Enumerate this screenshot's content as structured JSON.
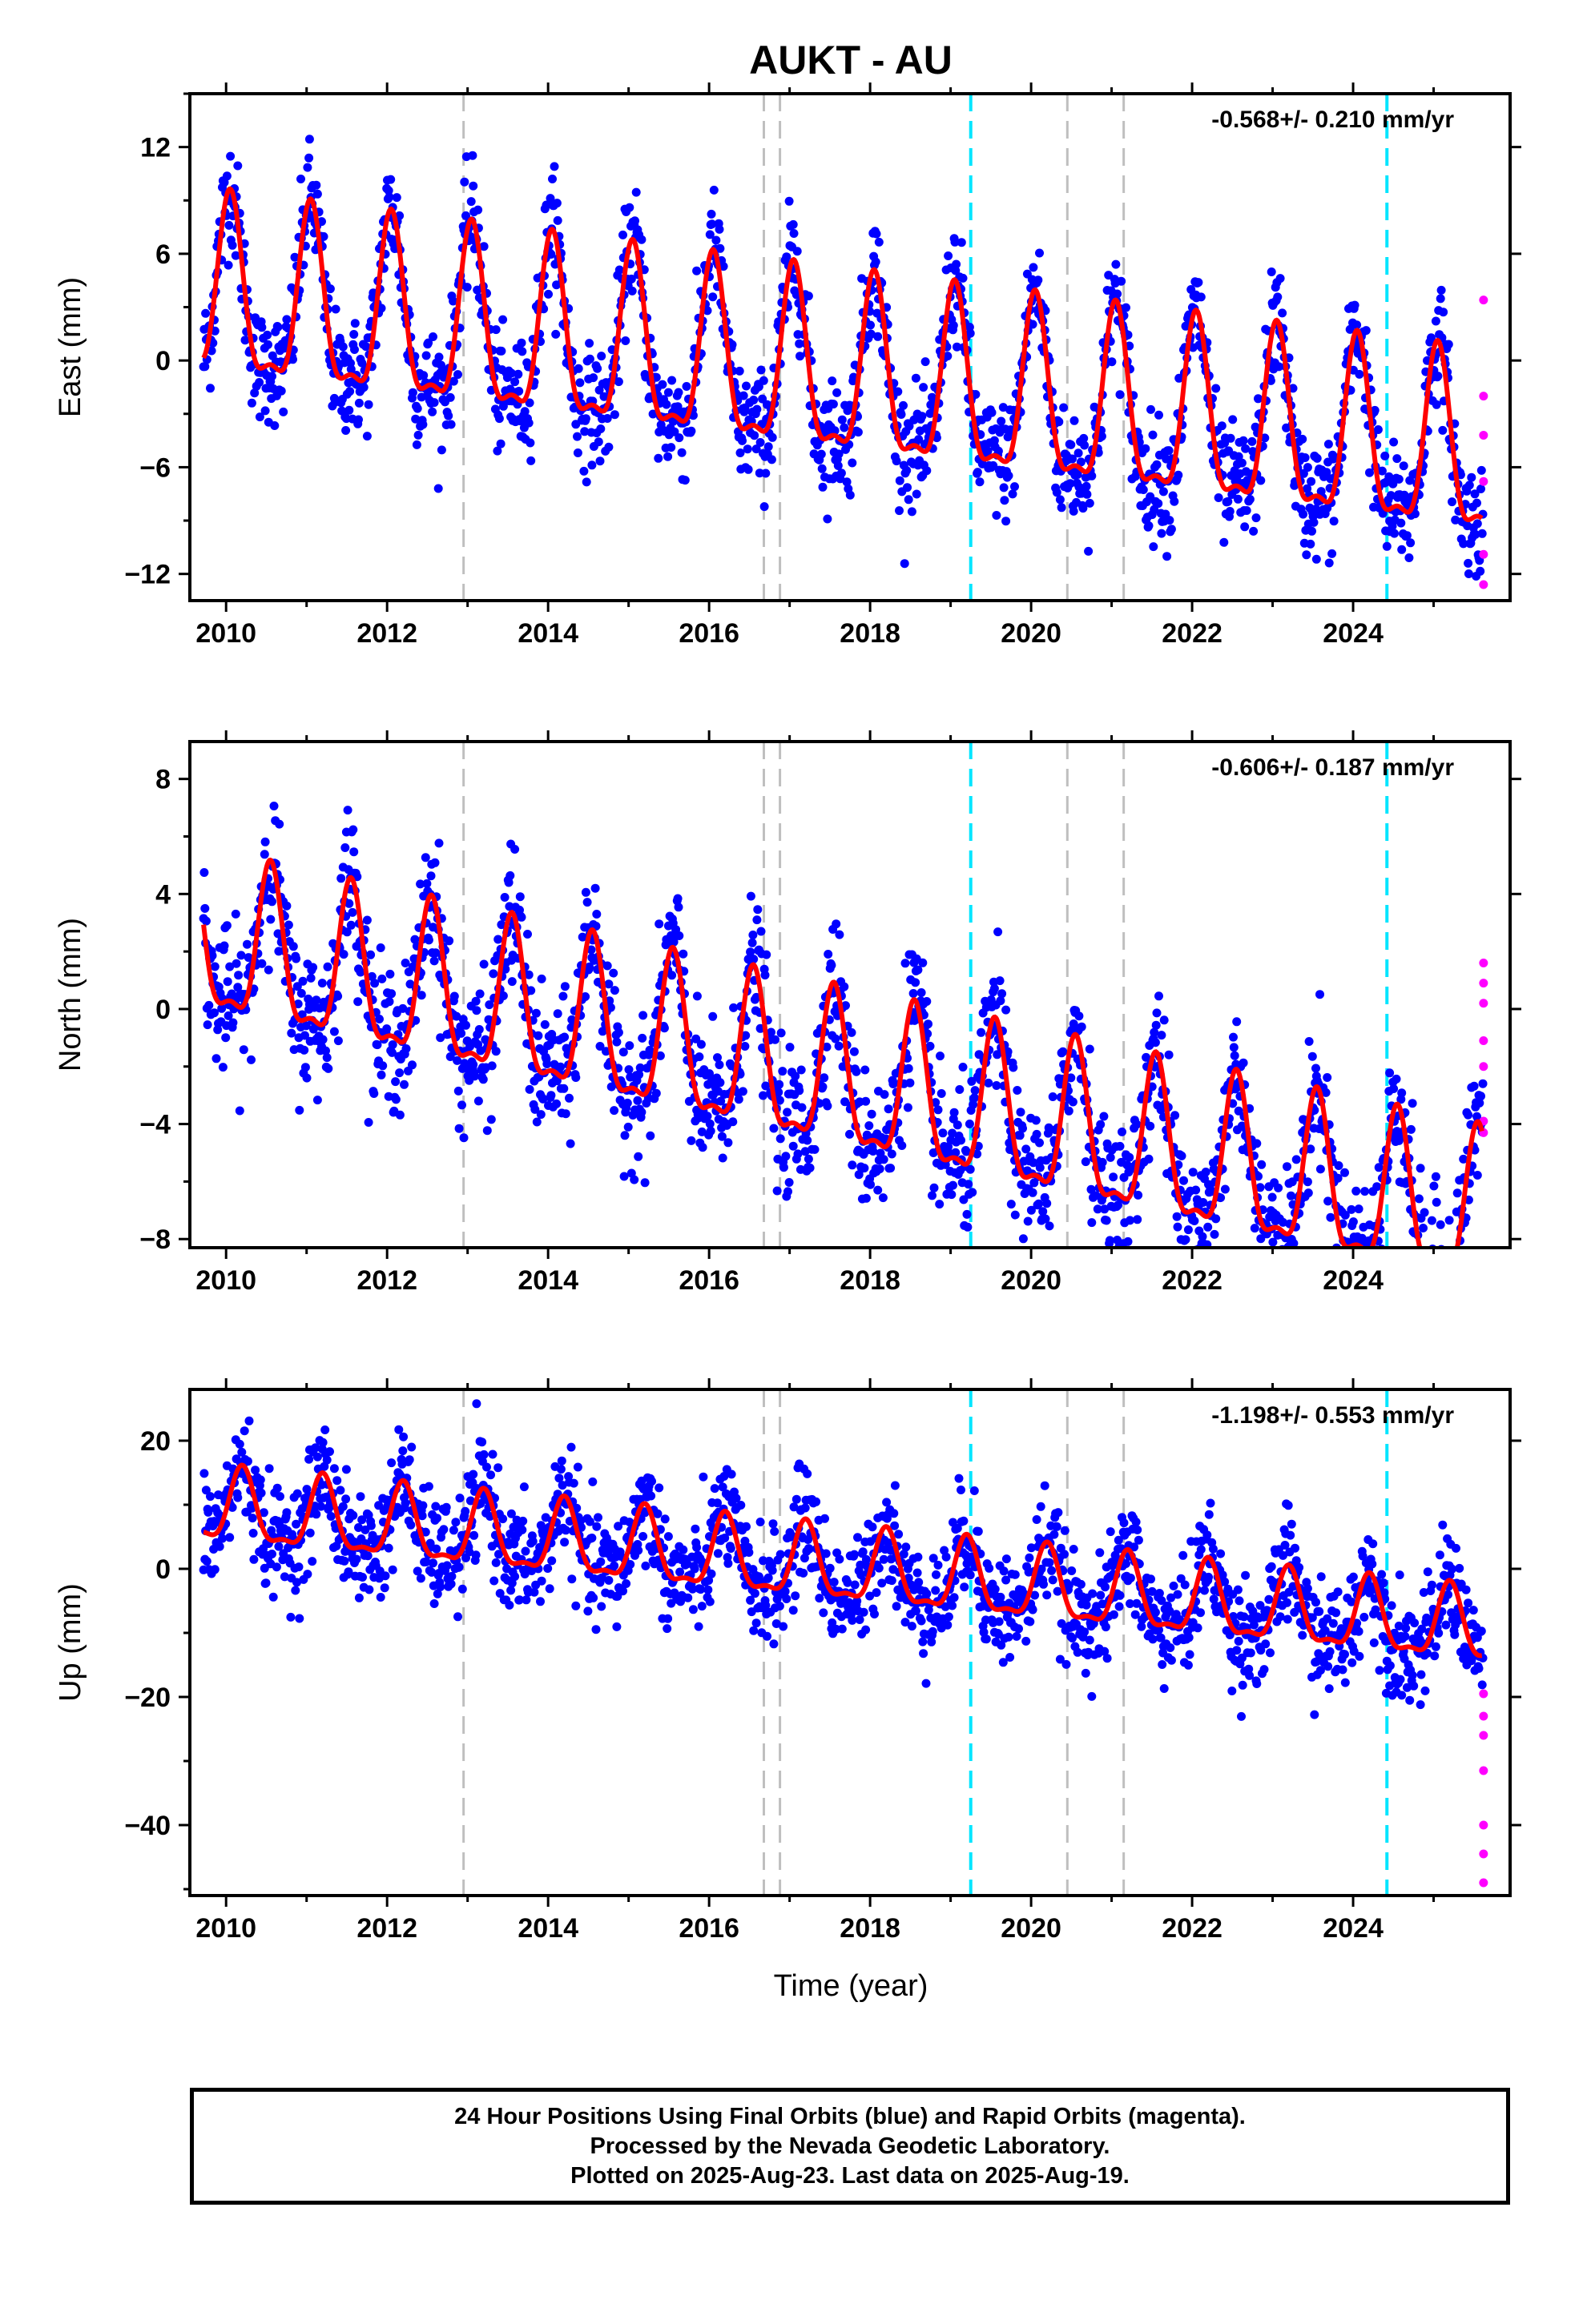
{
  "figure": {
    "title": "AUKT - AU",
    "xlabel": "Time (year)",
    "caption": [
      "24 Hour Positions Using Final Orbits (blue) and Rapid Orbits (magenta).",
      "Processed by the Nevada Geodetic Laboratory.",
      "Plotted on 2025-Aug-23. Last data on 2025-Aug-19."
    ],
    "colors": {
      "final_orbits": "#0000ff",
      "rapid_orbits": "#ff00ff",
      "model_fit": "#ff0000",
      "equipment_change": "#bfbfbf",
      "earthquake": "#00e5ff"
    }
  },
  "chart_data": [
    {
      "type": "scatter",
      "component": "East",
      "ylabel": "East (mm)",
      "rate_label": "-0.568+/- 0.210 mm/yr",
      "xlim": [
        2009.55,
        2025.95
      ],
      "ylim": [
        -13.5,
        15
      ],
      "xticks": [
        2010,
        2012,
        2014,
        2016,
        2018,
        2020,
        2022,
        2024
      ],
      "yticks": [
        -12,
        -6,
        0,
        6,
        12
      ],
      "trend": {
        "value_2010": 3.2,
        "rate_mm_per_yr": -0.568,
        "amplitude": 4.8,
        "phase_year": 0.05,
        "noise_sd": 1.6
      },
      "rapid_points": {
        "x": [
          2025.62,
          2025.62,
          2025.62,
          2025.62,
          2025.62,
          2025.62
        ],
        "y": [
          3.4,
          -2.0,
          -4.2,
          -6.8,
          -10.9,
          -12.6
        ]
      },
      "steps_gray": [
        2012.95,
        2016.68,
        2016.88,
        2020.45,
        2021.15
      ],
      "steps_cyan": [
        2019.25,
        2024.42
      ],
      "grid": false
    },
    {
      "type": "scatter",
      "component": "North",
      "ylabel": "North (mm)",
      "rate_label": "-0.606+/- 0.187 mm/yr",
      "xlim": [
        2009.55,
        2025.95
      ],
      "ylim": [
        -8.3,
        9.3
      ],
      "xticks": [
        2010,
        2012,
        2014,
        2016,
        2018,
        2020,
        2022,
        2024
      ],
      "yticks": [
        -8,
        -4,
        0,
        4,
        8
      ],
      "trend": {
        "value_2010": 2.0,
        "rate_mm_per_yr": -0.606,
        "amplitude": 2.6,
        "phase_year": 0.55,
        "noise_sd": 1.2
      },
      "rapid_points": {
        "x": [
          2025.62,
          2025.62,
          2025.62,
          2025.62,
          2025.62,
          2025.62,
          2025.62
        ],
        "y": [
          1.6,
          0.9,
          0.2,
          -1.1,
          -2.0,
          -3.9,
          -4.3
        ]
      },
      "steps_gray": [
        2012.95,
        2016.68,
        2016.88,
        2020.45,
        2021.15
      ],
      "steps_cyan": [
        2019.25,
        2024.42
      ],
      "grid": false
    },
    {
      "type": "scatter",
      "component": "Up",
      "ylabel": "Up (mm)",
      "rate_label": "-1.198+/- 0.553 mm/yr",
      "xlim": [
        2009.55,
        2025.95
      ],
      "ylim": [
        -51,
        28
      ],
      "xticks": [
        2010,
        2012,
        2014,
        2016,
        2018,
        2020,
        2022,
        2024
      ],
      "yticks": [
        -40,
        -20,
        0,
        20
      ],
      "trend": {
        "value_2010": 9.0,
        "rate_mm_per_yr": -1.198,
        "amplitude": 5.5,
        "phase_year": 0.2,
        "noise_sd": 4.2
      },
      "rapid_points": {
        "x": [
          2025.62,
          2025.62,
          2025.62,
          2025.62,
          2025.62,
          2025.62,
          2025.62
        ],
        "y": [
          -19.5,
          -23,
          -26,
          -31.5,
          -40,
          -44.5,
          -49
        ]
      },
      "steps_gray": [
        2012.95,
        2016.68,
        2016.88,
        2020.45,
        2021.15
      ],
      "steps_cyan": [
        2019.25,
        2024.42
      ],
      "grid": false
    }
  ]
}
